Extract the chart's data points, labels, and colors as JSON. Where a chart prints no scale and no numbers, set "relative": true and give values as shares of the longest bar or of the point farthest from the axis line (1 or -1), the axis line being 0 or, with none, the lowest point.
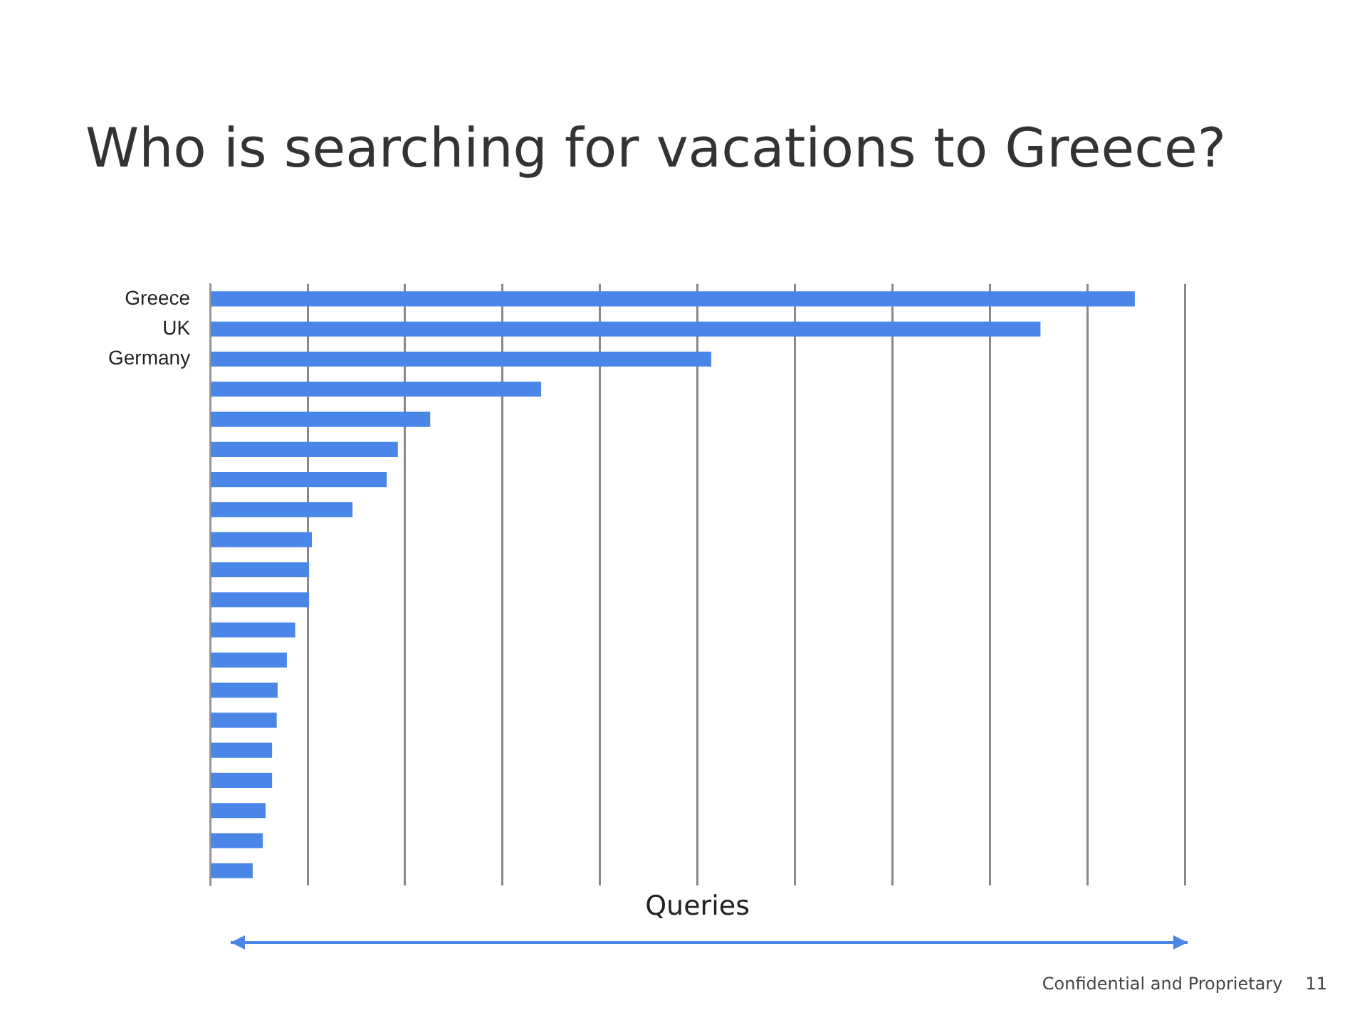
{
  "chart_data": {
    "type": "bar",
    "orientation": "horizontal",
    "relative": true,
    "title": "Who is searching for vacations to Greece?",
    "xlabel": "Queries",
    "categories": [
      "Greece",
      "UK",
      "Germany",
      null,
      null,
      null,
      null,
      null,
      null,
      null,
      null,
      null,
      null,
      null,
      null,
      null,
      null,
      null,
      null,
      null
    ],
    "values": [
      1,
      0.898,
      0.542,
      0.358,
      0.238,
      0.203,
      0.191,
      0.154,
      0.11,
      0.107,
      0.107,
      0.092,
      0.083,
      0.073,
      0.072,
      0.067,
      0.067,
      0.06,
      0.057,
      0.046
    ],
    "color": "#4a86e8",
    "grid": "x",
    "legend": false,
    "annotations": [
      "Confidential and Proprietary",
      "11"
    ]
  }
}
